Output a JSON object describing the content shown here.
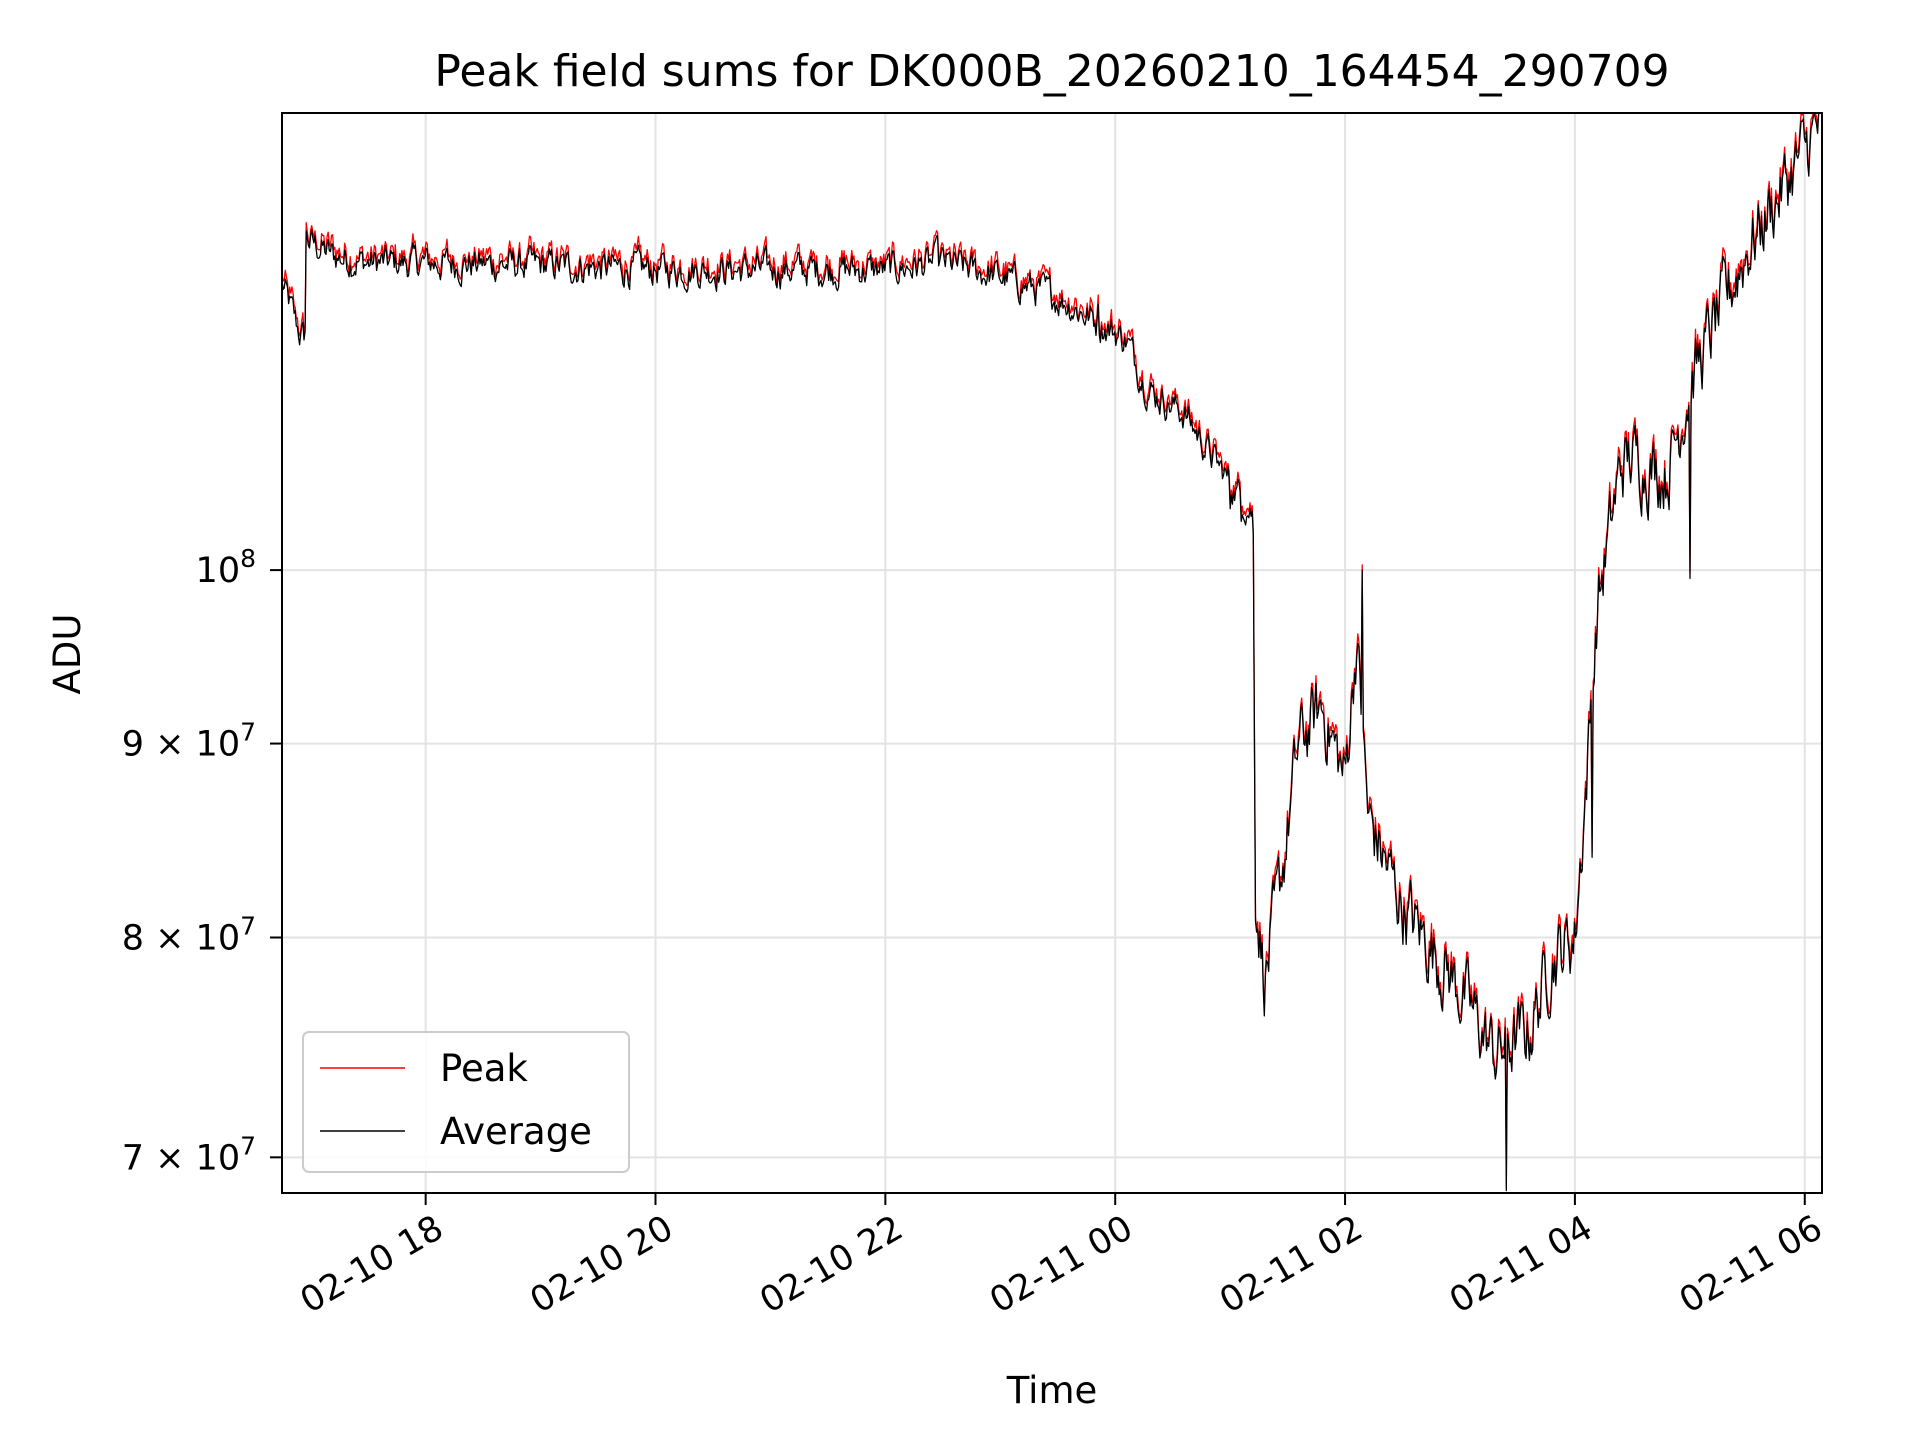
{
  "chart_data": {
    "type": "line",
    "title": "Peak field sums for DK000B_20260210_164454_290709",
    "xlabel": "Time",
    "ylabel": "ADU",
    "yscale": "log",
    "ylim": [
      68500000,
      132000000
    ],
    "xlim_hours": [
      16.75,
      30.15
    ],
    "x_origin": "02-10 00:00",
    "x_units": "hours since 02-10 00:00",
    "grid": true,
    "legend_position": "lower-left",
    "x_ticks": [
      {
        "hour": 18,
        "label": "02-10 18"
      },
      {
        "hour": 20,
        "label": "02-10 20"
      },
      {
        "hour": 22,
        "label": "02-10 22"
      },
      {
        "hour": 24,
        "label": "02-11 00"
      },
      {
        "hour": 26,
        "label": "02-11 02"
      },
      {
        "hour": 28,
        "label": "02-11 04"
      },
      {
        "hour": 30,
        "label": "02-11 06"
      }
    ],
    "y_ticks": [
      {
        "value": 70000000,
        "mantissa": "7",
        "exponent": "7"
      },
      {
        "value": 80000000,
        "mantissa": "8",
        "exponent": "7"
      },
      {
        "value": 90000000,
        "mantissa": "9",
        "exponent": "7"
      },
      {
        "value": 100000000,
        "mantissa": "",
        "exponent": "8"
      }
    ],
    "y_tick_base": "10",
    "y_tick_times": "×",
    "series": [
      {
        "name": "Peak",
        "color": "#ff0000",
        "offset_fraction": 0.004
      },
      {
        "name": "Average",
        "color": "#000000",
        "offset_fraction": 0.0
      }
    ],
    "trend_hours": [
      16.75,
      16.9,
      16.95,
      16.96,
      17.0,
      17.2,
      17.5,
      18.0,
      19.0,
      20.0,
      21.0,
      22.0,
      22.5,
      23.0,
      23.5,
      23.8,
      24.1,
      24.2,
      24.3,
      24.6,
      24.9,
      25.1,
      25.2,
      25.22,
      25.3,
      25.4,
      25.6,
      25.8,
      26.0,
      26.1,
      26.2,
      26.5,
      27.0,
      27.3,
      27.6,
      27.8,
      28.0,
      28.1,
      28.2,
      28.4,
      28.5,
      28.8,
      29.0,
      29.5,
      30.0,
      30.15
    ],
    "trend_values": [
      119000000,
      115500000,
      115000000,
      122500000,
      122000000,
      121000000,
      120500000,
      120500000,
      120300000,
      120000000,
      120000000,
      120000000,
      120500000,
      119500000,
      118000000,
      116500000,
      115000000,
      113000000,
      111500000,
      110000000,
      106500000,
      104500000,
      103500000,
      82500000,
      78000000,
      81000000,
      90000000,
      92000000,
      88000000,
      96000000,
      86000000,
      81500000,
      77500000,
      74500000,
      75500000,
      79000000,
      80000000,
      88000000,
      98000000,
      106500000,
      107000000,
      106000000,
      112000000,
      121500000,
      129000000,
      131500000
    ],
    "spikes": [
      {
        "hour": 27.4,
        "value": 68600000
      },
      {
        "hour": 29.0,
        "value": 99500000
      },
      {
        "hour": 25.1,
        "value": 103000000
      },
      {
        "hour": 25.0,
        "value": 103800000
      },
      {
        "hour": 23.85,
        "value": 117500000
      },
      {
        "hour": 22.45,
        "value": 122500000
      },
      {
        "hour": 26.15,
        "value": 100000000
      },
      {
        "hour": 28.15,
        "value": 84000000
      }
    ],
    "noise_fraction": 0.008,
    "samples": 1400
  }
}
